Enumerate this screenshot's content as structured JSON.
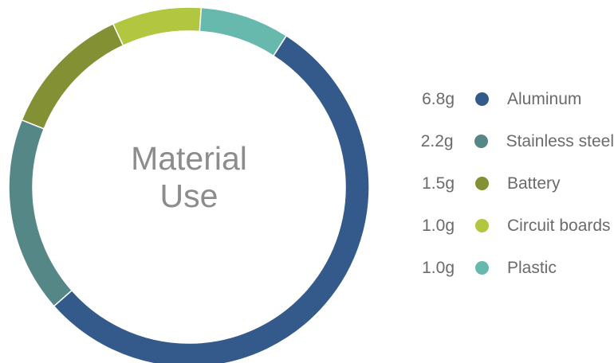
{
  "chart_data": {
    "type": "pie",
    "title": "Material Use",
    "title_lines": [
      "Material",
      "Use"
    ],
    "unit": "g",
    "slices": [
      {
        "label": "Aluminum",
        "value": 6.8,
        "display": "6.8g",
        "color": "#335a8a"
      },
      {
        "label": "Stainless steel",
        "value": 2.2,
        "display": "2.2g",
        "color": "#558787"
      },
      {
        "label": "Battery",
        "value": 1.5,
        "display": "1.5g",
        "color": "#839034"
      },
      {
        "label": "Circuit boards",
        "value": 1.0,
        "display": "1.0g",
        "color": "#b2c63f"
      },
      {
        "label": "Plastic",
        "value": 1.0,
        "display": "1.0g",
        "color": "#66b9ac"
      }
    ],
    "legend_position": "right"
  }
}
